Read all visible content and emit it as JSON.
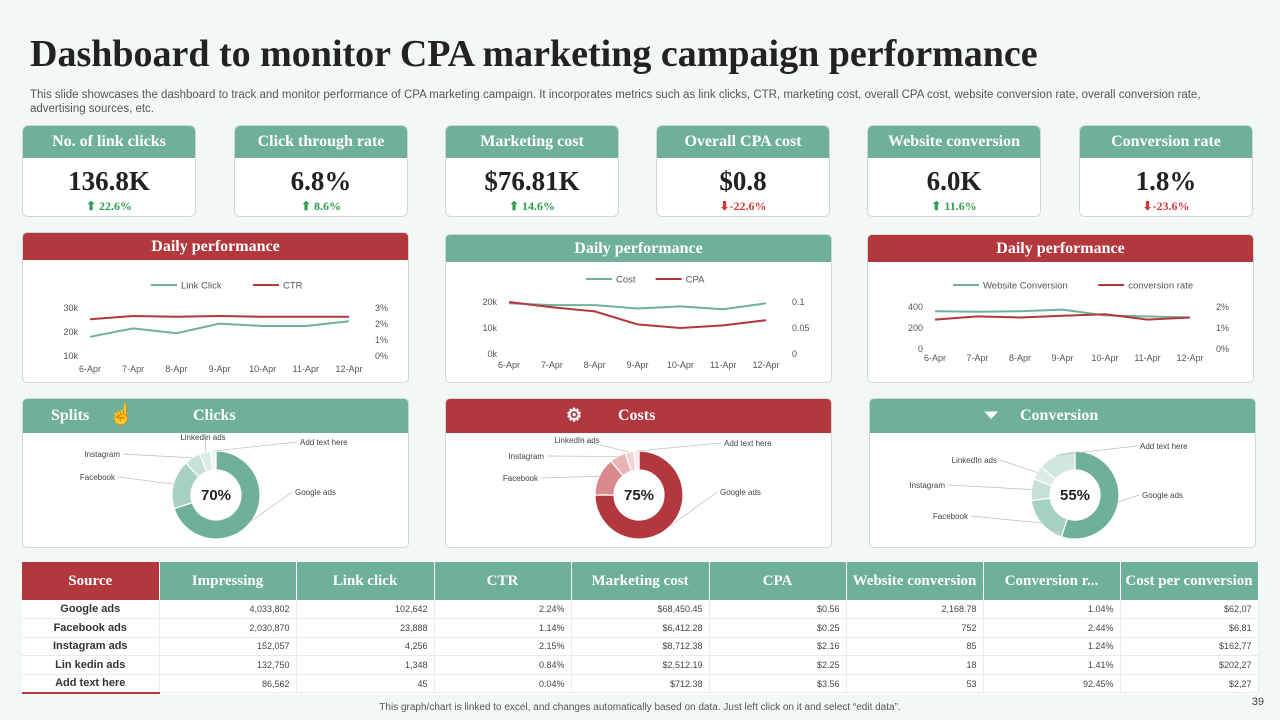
{
  "page": {
    "title": "Dashboard to monitor CPA marketing campaign performance",
    "subtitle": "This slide showcases the dashboard to track and monitor performance of CPA marketing campaign. It incorporates metrics such as link clicks, CTR, marketing cost, overall CPA cost, website conversion rate, overall conversion rate, advertising sources, etc.",
    "footnote": "This graph/chart is linked to excel, and changes automatically based on data. Just left click on it and select “edit data”.",
    "page_number": "39"
  },
  "colors": {
    "green": "#6fb09b",
    "red": "#b2383e",
    "up": "#2e9e4f",
    "down": "#d23a3a"
  },
  "kpis": [
    {
      "label": "No. of link clicks",
      "value": "136.8K",
      "delta": "⬆ 22.6%",
      "trend": "up"
    },
    {
      "label": "Click through rate",
      "value": "6.8%",
      "delta": "⬆ 8.6%",
      "trend": "up"
    },
    {
      "label": "Marketing cost",
      "value": "$76.81K",
      "delta": "⬆ 14.6%",
      "trend": "up"
    },
    {
      "label": "Overall CPA cost",
      "value": "$0.8",
      "delta": "⬇-22.6%",
      "trend": "down"
    },
    {
      "label": "Website conversion",
      "value": "6.0K",
      "delta": "⬆ 11.6%",
      "trend": "up"
    },
    {
      "label": "Conversion rate",
      "value": "1.8%",
      "delta": "⬇-23.6%",
      "trend": "down"
    }
  ],
  "panels": {
    "daily1": "Daily performance",
    "daily2": "Daily performance",
    "daily3": "Daily performance",
    "splits": "Splits",
    "clicks": "Clicks",
    "costs": "Costs",
    "conversion": "Conversion"
  },
  "chart_data": [
    {
      "type": "line",
      "title": "Daily performance",
      "x": [
        "6-Apr",
        "7-Apr",
        "8-Apr",
        "9-Apr",
        "10-Apr",
        "11-Apr",
        "12-Apr"
      ],
      "series": [
        {
          "name": "Link Click",
          "axis": "left",
          "color": "#6fb09b",
          "values": [
            18000,
            21500,
            19500,
            23500,
            22500,
            22500,
            24500
          ]
        },
        {
          "name": "CTR",
          "axis": "right",
          "color": "#b2383e",
          "values": [
            2.3,
            2.5,
            2.45,
            2.5,
            2.45,
            2.45,
            2.45
          ]
        }
      ],
      "left_ticks": [
        "30k",
        "20k",
        "10k"
      ],
      "ylim_left": [
        10000,
        30000
      ],
      "right_ticks": [
        "3%",
        "2%",
        "1%",
        "0%"
      ],
      "ylim_right": [
        0,
        3
      ]
    },
    {
      "type": "line",
      "title": "Daily performance",
      "x": [
        "6-Apr",
        "7-Apr",
        "8-Apr",
        "9-Apr",
        "10-Apr",
        "11-Apr",
        "12-Apr"
      ],
      "series": [
        {
          "name": "Cost",
          "axis": "left",
          "color": "#6fb09b",
          "values": [
            19500,
            18800,
            18800,
            17500,
            18300,
            17200,
            19500
          ]
        },
        {
          "name": "CPA",
          "axis": "right",
          "color": "#b2383e",
          "values": [
            0.1,
            0.09,
            0.082,
            0.057,
            0.05,
            0.055,
            0.065
          ]
        }
      ],
      "left_ticks": [
        "20k",
        "10k",
        "0k"
      ],
      "ylim_left": [
        0,
        20000
      ],
      "right_ticks": [
        "0.1",
        "0.05",
        "0"
      ],
      "ylim_right": [
        0,
        0.1
      ]
    },
    {
      "type": "line",
      "title": "Daily performance",
      "x": [
        "6-Apr",
        "7-Apr",
        "8-Apr",
        "9-Apr",
        "10-Apr",
        "11-Apr",
        "12-Apr"
      ],
      "series": [
        {
          "name": "Website Conversion",
          "axis": "left",
          "color": "#6fb09b",
          "values": [
            360,
            355,
            360,
            375,
            320,
            310,
            300
          ]
        },
        {
          "name": "conversion rate",
          "axis": "right",
          "color": "#b2383e",
          "values": [
            1.4,
            1.55,
            1.5,
            1.58,
            1.65,
            1.4,
            1.5
          ]
        }
      ],
      "left_ticks": [
        "400",
        "200",
        "0"
      ],
      "ylim_left": [
        0,
        400
      ],
      "right_ticks": [
        "2%",
        "1%",
        "0%"
      ],
      "ylim_right": [
        0,
        2
      ]
    },
    {
      "type": "pie",
      "title": "Clicks",
      "center_label": "70%",
      "labels": [
        "Google ads",
        "Facebook",
        "Instagram",
        "LinkedIn ads",
        "Add text here"
      ],
      "values": [
        70,
        18,
        6,
        4,
        2
      ],
      "colors": [
        "#6fb09b",
        "#a9d1c3",
        "#c7e1d8",
        "#dcebe5",
        "#eef5f2"
      ]
    },
    {
      "type": "pie",
      "title": "Costs",
      "center_label": "75%",
      "labels": [
        "Google ads",
        "Facebook",
        "Instagram",
        "LinkedIn ads",
        "Add text here"
      ],
      "values": [
        75,
        14,
        6,
        3,
        2
      ],
      "colors": [
        "#b2383e",
        "#d88a8d",
        "#e8b4b6",
        "#f1d3d4",
        "#f8e9ea"
      ]
    },
    {
      "type": "pie",
      "title": "Conversion",
      "center_label": "55%",
      "labels": [
        "Google ads",
        "Facebook",
        "Instagram",
        "LinkedIn ads",
        "Add text here"
      ],
      "values": [
        55,
        18,
        8,
        5,
        14
      ],
      "colors": [
        "#6fb09b",
        "#a9d1c3",
        "#c7e1d8",
        "#dcebe5",
        "#d0e7df"
      ]
    },
    {
      "type": "table",
      "columns": [
        "Source",
        "Impressing",
        "Link click",
        "CTR",
        "Marketing cost",
        "CPA",
        "Website conversion",
        "Conversion r...",
        "Cost per conversion"
      ],
      "rows": [
        [
          "Google ads",
          "4,033,802",
          "102,642",
          "2.24%",
          "$68,450.45",
          "$0.56",
          "2,168.78",
          "1.04%",
          "$62,07"
        ],
        [
          "Facebook ads",
          "2,030,870",
          "23,888",
          "1.14%",
          "$6,412.28",
          "$0.25",
          "752",
          "2.44%",
          "$6,81"
        ],
        [
          "Instagram ads",
          "152,057",
          "4,256",
          "2.15%",
          "$8,712.38",
          "$2.16",
          "85",
          "1.24%",
          "$162,77"
        ],
        [
          "Lin kedin ads",
          "132,750",
          "1,348",
          "0.84%",
          "$2,512.19",
          "$2.25",
          "18",
          "1.41%",
          "$202,27"
        ],
        [
          "Add text here",
          "86,562",
          "45",
          "0.04%",
          "$712.38",
          "$3.56",
          "53",
          "92.45%",
          "$2,27"
        ]
      ]
    }
  ]
}
